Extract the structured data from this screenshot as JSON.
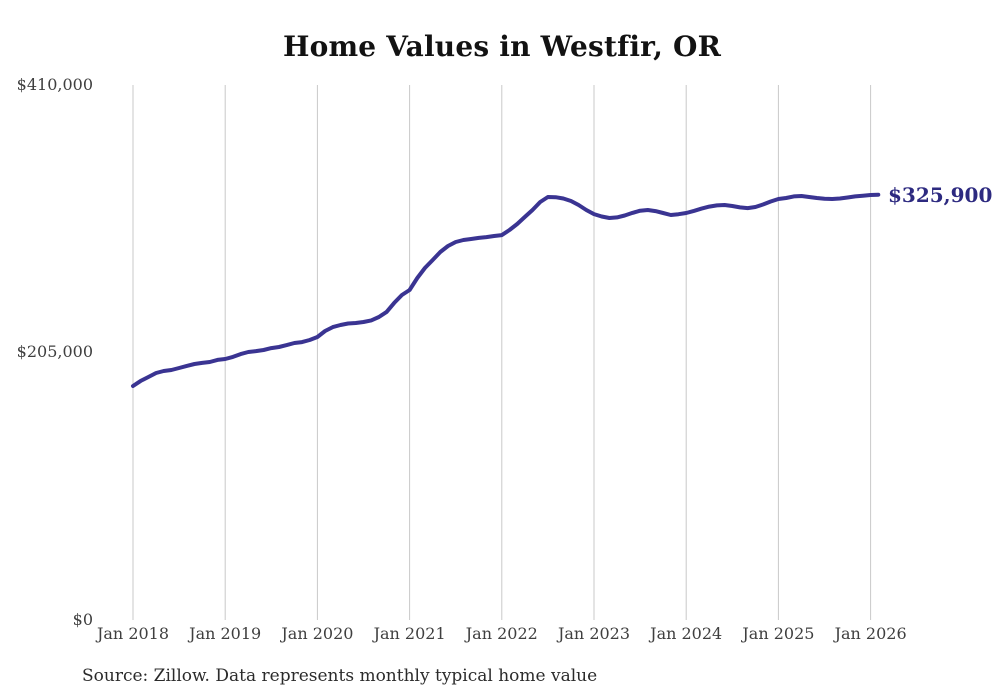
{
  "title": "Home Values in Westfir, OR",
  "source_note": "Source: Zillow. Data represents monthly typical home value",
  "colors": {
    "line": "#3a3492",
    "end_label": "#2d2a80",
    "gridline": "#c9c9c9",
    "axis_text": "#3f3f3f",
    "title_text": "#121212",
    "background": "#ffffff"
  },
  "chart_data": {
    "type": "line",
    "title": "Home Values in Westfir, OR",
    "series_name": "Monthly typical home value",
    "frequency": "monthly",
    "x_start": "2018-01",
    "x_end": "2026-02",
    "x_tick_labels": [
      "Jan 2018",
      "Jan 2019",
      "Jan 2020",
      "Jan 2021",
      "Jan 2022",
      "Jan 2023",
      "Jan 2024",
      "Jan 2025",
      "Jan 2026"
    ],
    "y_tick_labels": [
      "$410,000",
      "$205,000",
      "$0"
    ],
    "y_tick_values": [
      410000,
      205000,
      0
    ],
    "ylim": [
      0,
      410000
    ],
    "grid": "vertical-only",
    "legend": "none",
    "end_label": "$325,900",
    "end_value": 325900,
    "values": [
      179300,
      183200,
      186200,
      189300,
      190800,
      191600,
      193100,
      194700,
      196200,
      197000,
      197700,
      199300,
      200000,
      201600,
      203800,
      205400,
      206100,
      206900,
      208400,
      209200,
      210700,
      212300,
      213000,
      214600,
      216900,
      221500,
      224500,
      226100,
      227200,
      227600,
      228400,
      229600,
      232200,
      236100,
      243000,
      249100,
      252900,
      262100,
      269800,
      275900,
      282000,
      286600,
      289700,
      291200,
      292000,
      292800,
      293400,
      294300,
      295000,
      298900,
      303500,
      308900,
      314200,
      320300,
      324200,
      324000,
      323000,
      321100,
      318000,
      314200,
      311100,
      309200,
      308100,
      308500,
      310000,
      312000,
      313700,
      314200,
      313400,
      311900,
      310400,
      311000,
      311900,
      313500,
      315300,
      316800,
      317700,
      318000,
      317300,
      316200,
      315700,
      316500,
      318400,
      320700,
      322600,
      323400,
      324600,
      324900,
      324200,
      323400,
      322800,
      322600,
      323000,
      323800,
      324600,
      325200,
      325700,
      325900
    ]
  }
}
